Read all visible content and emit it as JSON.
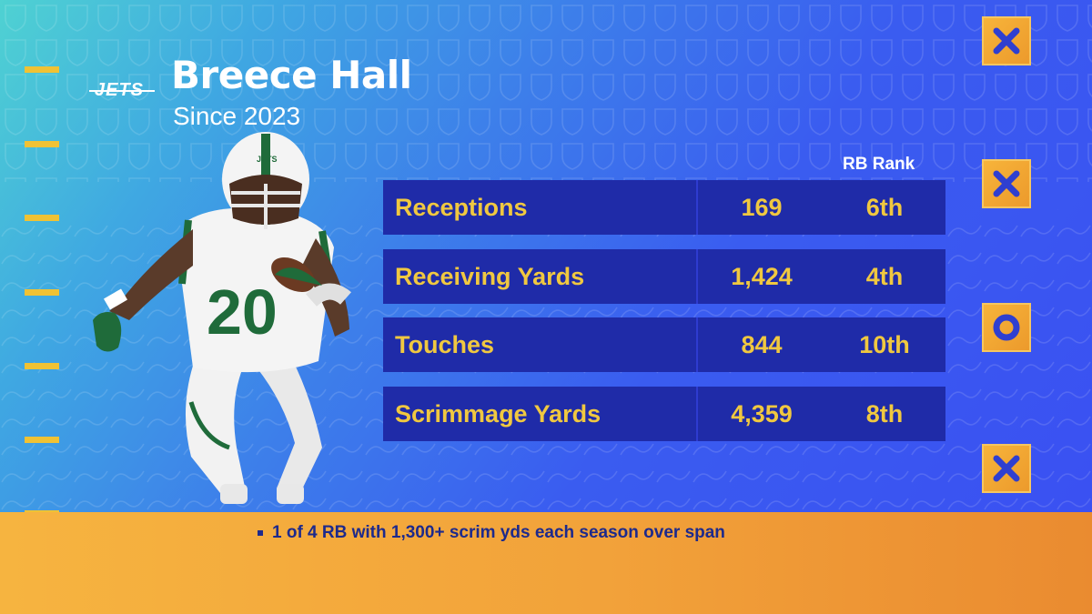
{
  "header": {
    "team_logo_text": "JETS",
    "player_name": "Breece Hall",
    "since": "Since 2023"
  },
  "player": {
    "jersey_number": "20"
  },
  "table": {
    "rank_header": "RB Rank",
    "rows": [
      {
        "label": "Receptions",
        "value": "169",
        "rank": "6th"
      },
      {
        "label": "Receiving Yards",
        "value": "1,424",
        "rank": "4th"
      },
      {
        "label": "Touches",
        "value": "844",
        "rank": "10th"
      },
      {
        "label": "Scrimmage Yards",
        "value": "4,359",
        "rank": "8th"
      }
    ]
  },
  "decor": {
    "tic_tac_toe": [
      "x-icon",
      "x-icon",
      "o-icon",
      "x-icon"
    ]
  },
  "footer": {
    "note": "1 of 4 RB with 1,300+ scrim yds each season over span"
  },
  "colors": {
    "accent_gold": "#f0c840",
    "row_bg": "#1f2ba8",
    "footer_orange": "#f2a23a",
    "jets_green": "#1f6b3a"
  }
}
